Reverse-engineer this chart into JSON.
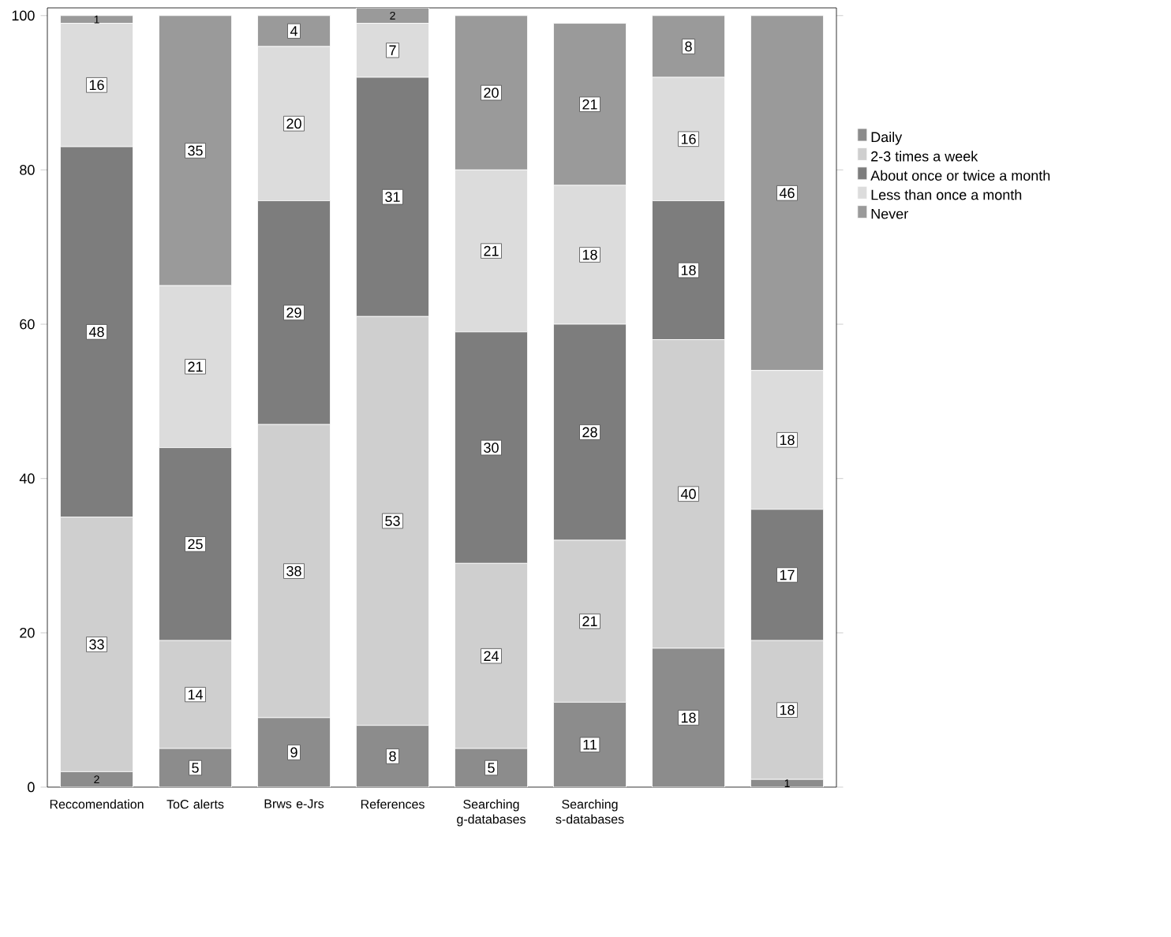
{
  "chart_data": {
    "type": "bar",
    "stacked": true,
    "data_labels": true,
    "categories": [
      "Reccomendation",
      "ToC alerts",
      "Brws e-Jrs",
      "References",
      "Searching g-databases",
      "Searching s-databases",
      null,
      null
    ],
    "series": [
      {
        "name": "Daily",
        "color": "#8c8c8c",
        "values": [
          2,
          5,
          9,
          8,
          5,
          11,
          18,
          1
        ]
      },
      {
        "name": "2-3 times a week",
        "color": "#cfcfcf",
        "values": [
          33,
          14,
          38,
          53,
          24,
          21,
          40,
          18
        ]
      },
      {
        "name": "About once or twice a month",
        "color": "#7d7d7d",
        "values": [
          48,
          25,
          29,
          31,
          30,
          28,
          18,
          17
        ]
      },
      {
        "name": "Less than once a month",
        "color": "#dcdcdc",
        "values": [
          16,
          21,
          20,
          7,
          21,
          18,
          16,
          18
        ]
      },
      {
        "name": "Never",
        "color": "#9a9a9a",
        "values": [
          1,
          35,
          4,
          2,
          20,
          21,
          8,
          46
        ]
      }
    ],
    "ylim": [
      0,
      101
    ],
    "yticks": [
      0,
      20,
      40,
      60,
      80,
      100
    ],
    "grid": false,
    "legend": "right"
  }
}
